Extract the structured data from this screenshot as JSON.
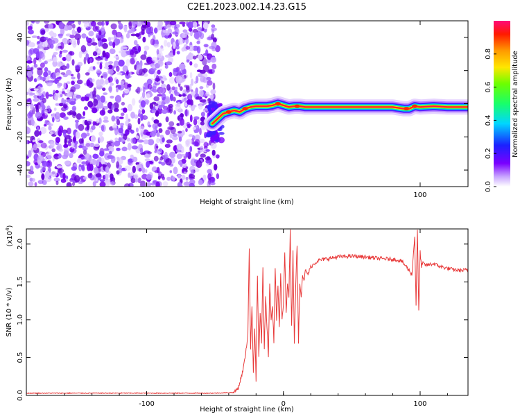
{
  "title": "C2E1.2023.002.14.23.G15",
  "colors": {
    "snr_line": "#e83a3a",
    "axis": "#000000"
  },
  "colorbar": {
    "label": "Normalized spectral amplitude",
    "ticks": [
      "0.0",
      "0.2",
      "0.4",
      "0.6",
      "0.8"
    ],
    "tick_values": [
      0.0,
      0.2,
      0.4,
      0.6,
      0.8
    ],
    "range": [
      0,
      1
    ]
  },
  "chart_data": [
    {
      "type": "heatmap",
      "name": "spectrogram",
      "xlabel": "Height of straight line (km)",
      "ylabel": "Frequency (Hz)",
      "xlim": [
        -188,
        135
      ],
      "ylim": [
        -50,
        50
      ],
      "xticks": [
        -100,
        100
      ],
      "xtick_labels": [
        "-100",
        "100"
      ],
      "yticks": [
        -40,
        -20,
        0,
        20,
        40
      ],
      "ytick_labels": [
        "-40",
        "-20",
        "0",
        "20",
        "40"
      ],
      "noise_region_x": [
        -188,
        -48
      ],
      "ridge": {
        "x": [
          -52,
          -48,
          -44,
          -40,
          -36,
          -32,
          -28,
          -24,
          -20,
          -16,
          -12,
          -8,
          -4,
          0,
          4,
          8,
          12,
          16,
          20,
          30,
          40,
          50,
          60,
          70,
          80,
          84,
          88,
          92,
          96,
          100,
          110,
          120,
          135
        ],
        "freq": [
          -12,
          -9,
          -6,
          -5,
          -4,
          -5,
          -3,
          -2,
          -1.5,
          -1.5,
          -1.5,
          -1,
          0,
          -1,
          -2,
          -1.5,
          -1.5,
          -2,
          -2,
          -2,
          -2,
          -2,
          -2,
          -2,
          -2,
          -2.5,
          -3,
          -3,
          -1.5,
          -2,
          -1.5,
          -2,
          -2
        ]
      }
    },
    {
      "type": "line",
      "name": "snr",
      "xlabel": "Height of straight line (km)",
      "ylabel": "SNR (10 * v/v)",
      "y_multiplier": "(x10",
      "y_multiplier_exp": "4",
      "y_multiplier_close": ")",
      "xlim": [
        -188,
        135
      ],
      "ylim": [
        0,
        2.2
      ],
      "xticks": [
        -100,
        0,
        100
      ],
      "xtick_labels": [
        "-100",
        "0",
        "100"
      ],
      "yticks": [
        0.0,
        0.5,
        1.0,
        1.5,
        2.0
      ],
      "ytick_labels": [
        "0.0",
        "0.5",
        "1.0",
        "1.5",
        "2.0"
      ],
      "series": [
        {
          "x": [
            -188,
            -150,
            -100,
            -50,
            -36,
            -33,
            -30,
            -28,
            -26,
            -25,
            -24,
            -23,
            -22,
            -21,
            -20,
            -19,
            -18,
            -17,
            -16,
            -15,
            -14,
            -13,
            -12,
            -11,
            -10,
            -9,
            -8,
            -7,
            -6,
            -5,
            -4,
            -3,
            -2,
            -1,
            0,
            1,
            2,
            3,
            4,
            5,
            6,
            7,
            8,
            9,
            10,
            11,
            12,
            13,
            14,
            15,
            16,
            18,
            20,
            25,
            30,
            40,
            50,
            60,
            70,
            80,
            86,
            90,
            94,
            96,
            97,
            98,
            99,
            100,
            101,
            102,
            104,
            110,
            115,
            120,
            125,
            130,
            135
          ],
          "y": [
            0.03,
            0.03,
            0.03,
            0.03,
            0.04,
            0.1,
            0.3,
            0.5,
            0.8,
            1.95,
            0.6,
            1.2,
            0.3,
            0.9,
            0.2,
            1.6,
            0.5,
            1.1,
            0.7,
            1.7,
            0.6,
            1.3,
            0.9,
            0.5,
            1.5,
            1.0,
            1.2,
            0.7,
            1.7,
            1.0,
            1.45,
            0.9,
            1.6,
            1.0,
            1.2,
            1.9,
            1.1,
            1.5,
            1.3,
            2.2,
            0.9,
            1.9,
            0.7,
            1.45,
            2.0,
            0.7,
            1.5,
            1.3,
            1.6,
            1.5,
            1.65,
            1.6,
            1.7,
            1.78,
            1.8,
            1.83,
            1.84,
            1.83,
            1.81,
            1.8,
            1.78,
            1.7,
            1.6,
            2.1,
            1.2,
            2.2,
            1.1,
            1.9,
            1.7,
            1.75,
            1.72,
            1.74,
            1.7,
            1.68,
            1.66,
            1.65,
            1.66
          ]
        }
      ]
    }
  ]
}
